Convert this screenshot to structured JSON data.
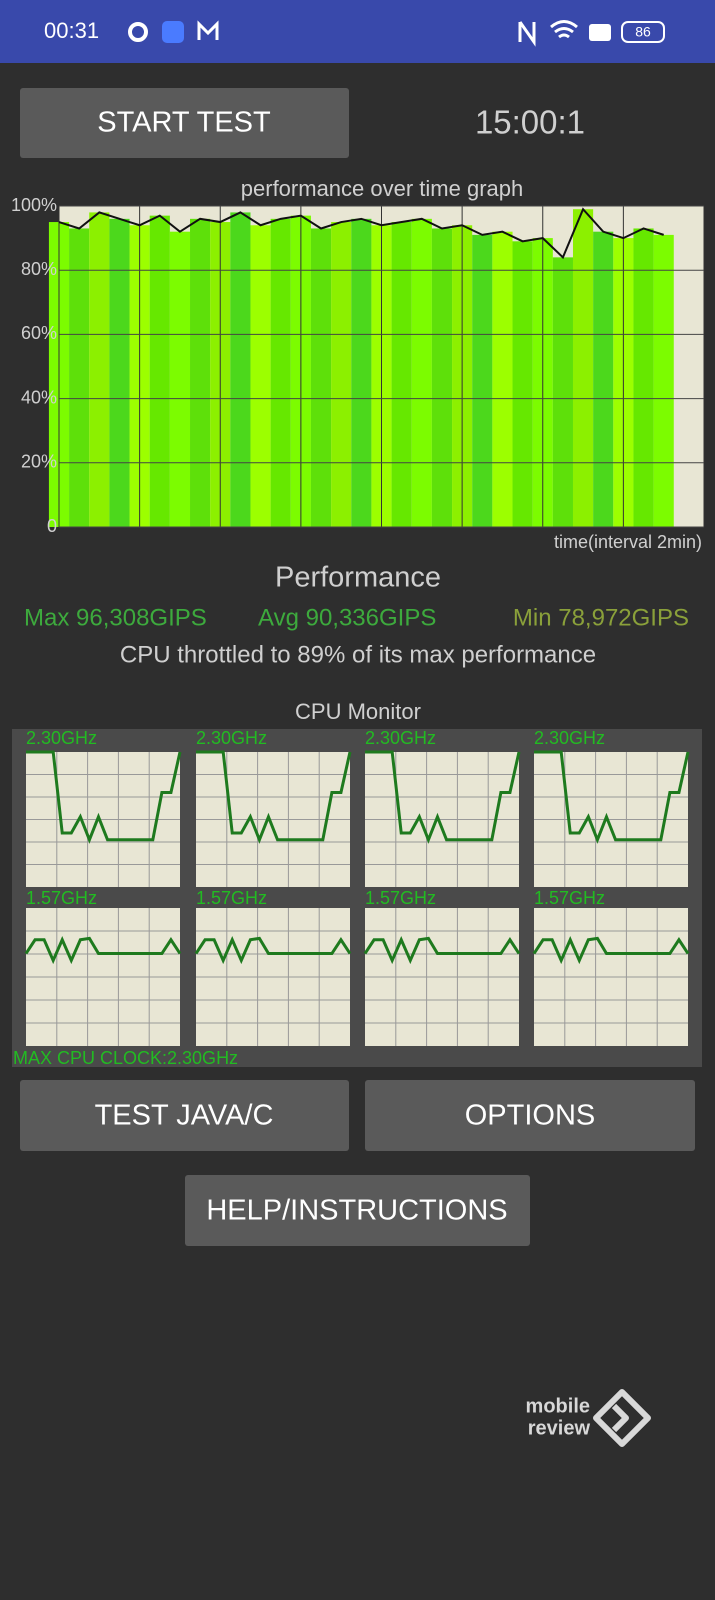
{
  "status_bar": {
    "time": "00:31",
    "battery": "86"
  },
  "start_button": "START TEST",
  "timer": "15:00:1",
  "performance_graph": {
    "type": "area",
    "title": "performance over time graph",
    "xlabel": "time(interval 2min)",
    "xlim": [
      0,
      16
    ],
    "ylim": [
      0,
      100
    ],
    "yticks": [
      {
        "value": 100,
        "label": "100%"
      },
      {
        "value": 80,
        "label": "80%"
      },
      {
        "value": 60,
        "label": "60%"
      },
      {
        "value": 40,
        "label": "40%"
      },
      {
        "value": 20,
        "label": "20%"
      },
      0
    ],
    "x": [
      0,
      0.5,
      1,
      1.5,
      2,
      2.5,
      3,
      3.5,
      4,
      4.5,
      5,
      5.5,
      6,
      6.5,
      7,
      7.5,
      8,
      8.5,
      9,
      9.5,
      10,
      10.5,
      11,
      11.5,
      12,
      12.5,
      13,
      13.5,
      14,
      14.5,
      15
    ],
    "values": [
      95,
      93,
      98,
      96,
      94,
      97,
      92,
      96,
      95,
      98,
      94,
      96,
      97,
      93,
      95,
      96,
      94,
      95,
      96,
      93,
      94,
      91,
      92,
      89,
      90,
      84,
      99,
      92,
      90,
      93,
      91
    ],
    "fill_color": "#7cfc00",
    "line_color": "#111111"
  },
  "performance": {
    "heading": "Performance",
    "max": "Max 96,308GIPS",
    "avg": "Avg 90,336GIPS",
    "min": "Min 78,972GIPS",
    "throttle": "CPU throttled to 89% of its max performance"
  },
  "cpu_monitor": {
    "title": "CPU Monitor",
    "ylim": [
      0,
      100
    ],
    "line_color": "#1e7a1e",
    "cores": [
      {
        "label": "2.30GHz",
        "values": [
          100,
          100,
          100,
          100,
          40,
          40,
          52,
          35,
          52,
          35,
          35,
          35,
          35,
          35,
          35,
          70,
          70,
          100
        ]
      },
      {
        "label": "2.30GHz",
        "values": [
          100,
          100,
          100,
          100,
          40,
          40,
          52,
          35,
          52,
          35,
          35,
          35,
          35,
          35,
          35,
          70,
          70,
          100
        ]
      },
      {
        "label": "2.30GHz",
        "values": [
          100,
          100,
          100,
          100,
          40,
          40,
          52,
          35,
          52,
          35,
          35,
          35,
          35,
          35,
          35,
          70,
          70,
          100
        ]
      },
      {
        "label": "2.30GHz",
        "values": [
          100,
          100,
          100,
          100,
          40,
          40,
          52,
          35,
          52,
          35,
          35,
          35,
          35,
          35,
          35,
          70,
          70,
          100
        ]
      },
      {
        "label": "1.57GHz",
        "values": [
          67,
          77,
          77,
          62,
          77,
          62,
          77,
          78,
          67,
          67,
          67,
          67,
          67,
          67,
          67,
          67,
          77,
          67
        ]
      },
      {
        "label": "1.57GHz",
        "values": [
          67,
          77,
          77,
          62,
          77,
          62,
          77,
          78,
          67,
          67,
          67,
          67,
          67,
          67,
          67,
          67,
          77,
          67
        ]
      },
      {
        "label": "1.57GHz",
        "values": [
          67,
          77,
          77,
          62,
          77,
          62,
          77,
          78,
          67,
          67,
          67,
          67,
          67,
          67,
          67,
          67,
          77,
          67
        ]
      },
      {
        "label": "1.57GHz",
        "values": [
          67,
          77,
          77,
          62,
          77,
          62,
          77,
          78,
          67,
          67,
          67,
          67,
          67,
          67,
          67,
          67,
          77,
          67
        ]
      }
    ],
    "max_clock": "MAX CPU CLOCK:2.30GHz"
  },
  "buttons": [
    "TEST JAVA/C",
    "OPTIONS",
    "HELP/INSTRUCTIONS"
  ],
  "watermark": [
    "mobile",
    "review"
  ]
}
